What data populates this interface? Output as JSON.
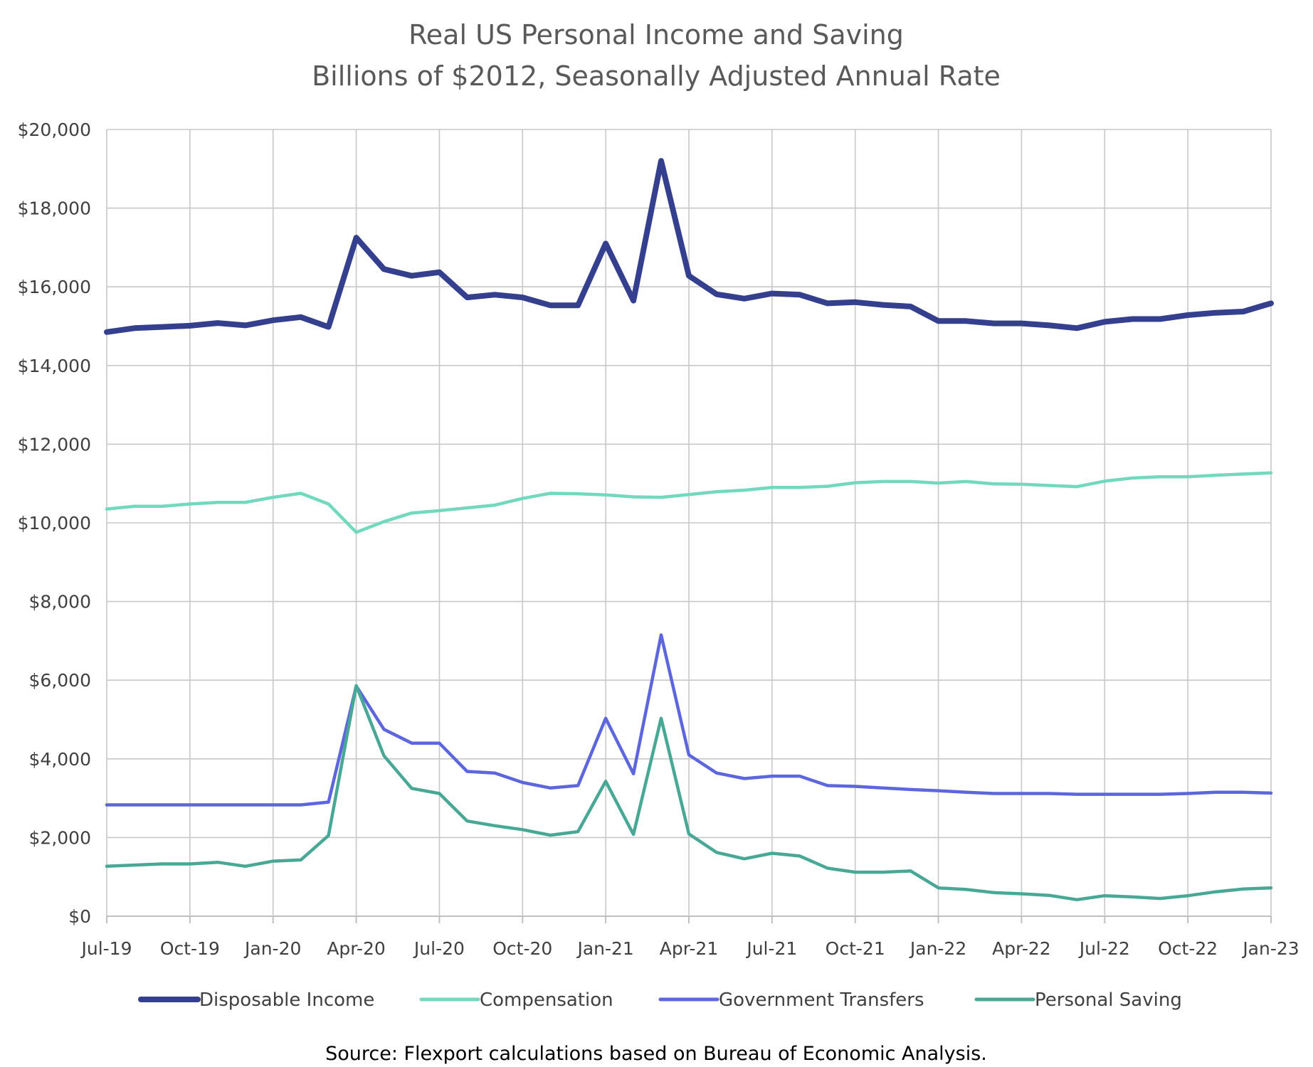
{
  "chart_data": {
    "type": "line",
    "title": "Real US Personal Income and Saving",
    "subtitle": "Billions of $2012, Seasonally Adjusted Annual Rate",
    "xlabel": "",
    "ylabel": "",
    "ylim": [
      0,
      20000
    ],
    "y_ticks": [
      0,
      2000,
      4000,
      6000,
      8000,
      10000,
      12000,
      14000,
      16000,
      18000,
      20000
    ],
    "y_tick_labels": [
      "$0",
      "$2,000",
      "$4,000",
      "$6,000",
      "$8,000",
      "$10,000",
      "$12,000",
      "$14,000",
      "$16,000",
      "$18,000",
      "$20,000"
    ],
    "x_tick_labels": [
      "Jul-19",
      "Oct-19",
      "Jan-20",
      "Apr-20",
      "Jul-20",
      "Oct-20",
      "Jan-21",
      "Apr-21",
      "Jul-21",
      "Oct-21",
      "Jan-22",
      "Apr-22",
      "Jul-22",
      "Oct-22",
      "Jan-23"
    ],
    "months": [
      "Jul-19",
      "Aug-19",
      "Sep-19",
      "Oct-19",
      "Nov-19",
      "Dec-19",
      "Jan-20",
      "Feb-20",
      "Mar-20",
      "Apr-20",
      "May-20",
      "Jun-20",
      "Jul-20",
      "Aug-20",
      "Sep-20",
      "Oct-20",
      "Nov-20",
      "Dec-20",
      "Jan-21",
      "Feb-21",
      "Mar-21",
      "Apr-21",
      "May-21",
      "Jun-21",
      "Jul-21",
      "Aug-21",
      "Sep-21",
      "Oct-21",
      "Nov-21",
      "Dec-21",
      "Jan-22",
      "Feb-22",
      "Mar-22",
      "Apr-22",
      "May-22",
      "Jun-22",
      "Jul-22",
      "Aug-22",
      "Sep-22",
      "Oct-22",
      "Nov-22",
      "Dec-22",
      "Jan-23"
    ],
    "grid": true,
    "legend_position": "bottom",
    "series": [
      {
        "name": "Disposable Income",
        "color": "#343f8e",
        "values": [
          14850,
          14950,
          14980,
          15010,
          15080,
          15020,
          15150,
          15230,
          14980,
          17250,
          16450,
          16280,
          16370,
          15730,
          15800,
          15730,
          15530,
          15530,
          17100,
          15650,
          19200,
          16280,
          15810,
          15700,
          15830,
          15800,
          15580,
          15610,
          15540,
          15500,
          15130,
          15130,
          15070,
          15070,
          15020,
          14950,
          15110,
          15180,
          15180,
          15280,
          15340,
          15370,
          15580
        ]
      },
      {
        "name": "Compensation",
        "color": "#72d8be",
        "values": [
          10350,
          10420,
          10420,
          10480,
          10520,
          10520,
          10650,
          10750,
          10480,
          9760,
          10030,
          10250,
          10310,
          10380,
          10450,
          10620,
          10750,
          10740,
          10710,
          10660,
          10650,
          10720,
          10790,
          10830,
          10900,
          10900,
          10930,
          11020,
          11050,
          11050,
          11010,
          11050,
          10990,
          10980,
          10950,
          10920,
          11060,
          11140,
          11170,
          11170,
          11210,
          11240,
          11270
        ]
      },
      {
        "name": "Government Transfers",
        "color": "#5d66dc",
        "values": [
          2830,
          2830,
          2830,
          2830,
          2830,
          2830,
          2830,
          2830,
          2900,
          5850,
          4750,
          4400,
          4400,
          3680,
          3640,
          3400,
          3260,
          3320,
          5030,
          3620,
          7150,
          4100,
          3640,
          3500,
          3560,
          3560,
          3320,
          3300,
          3260,
          3220,
          3190,
          3150,
          3120,
          3120,
          3120,
          3100,
          3100,
          3100,
          3100,
          3120,
          3150,
          3150,
          3130
        ]
      },
      {
        "name": "Personal Saving",
        "color": "#49a895",
        "values": [
          1270,
          1300,
          1330,
          1330,
          1370,
          1270,
          1400,
          1430,
          2050,
          5860,
          4080,
          3250,
          3120,
          2420,
          2300,
          2200,
          2060,
          2150,
          3430,
          2080,
          5030,
          2090,
          1620,
          1460,
          1600,
          1530,
          1220,
          1120,
          1120,
          1150,
          720,
          680,
          600,
          570,
          530,
          420,
          520,
          490,
          450,
          520,
          620,
          690,
          720
        ]
      }
    ]
  },
  "source": "Source: Flexport calculations based on Bureau of Economic Analysis."
}
